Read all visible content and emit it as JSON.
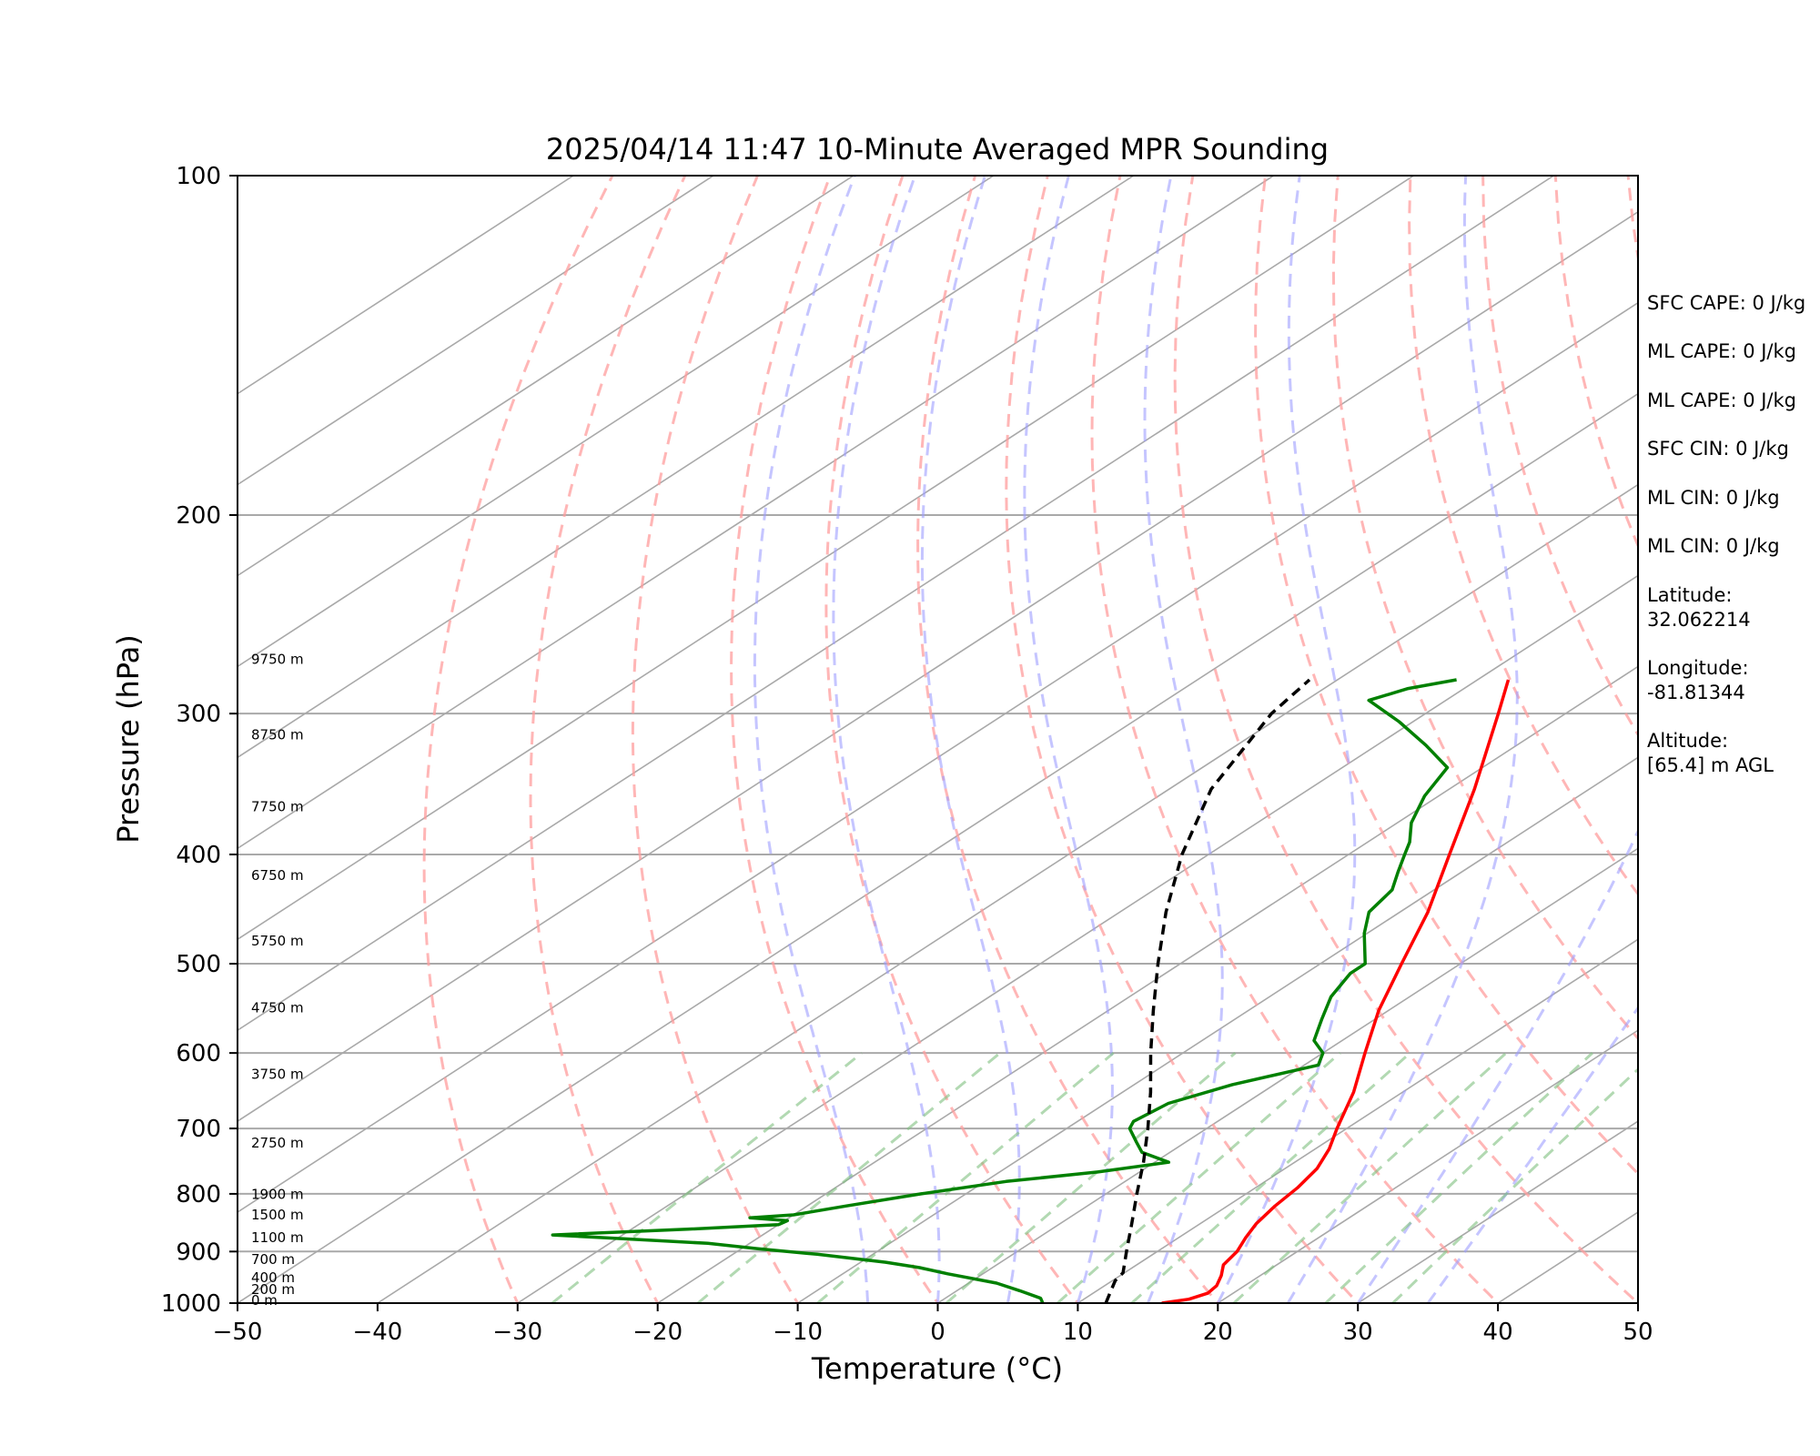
{
  "chart_data": {
    "type": "line",
    "title": "2025/04/14 11:47 10-Minute Averaged MPR Sounding",
    "xlabel": "Temperature (°C)",
    "ylabel": "Pressure (hPa)",
    "xlim": [
      -50,
      50
    ],
    "ylim": [
      1000,
      100
    ],
    "y_scale": "log",
    "grid": true,
    "x_ticks": [
      -50,
      -40,
      -30,
      -20,
      -10,
      0,
      10,
      20,
      30,
      40,
      50
    ],
    "y_ticks": [
      100,
      200,
      300,
      400,
      500,
      600,
      700,
      800,
      900,
      1000
    ],
    "series": [
      {
        "name": "",
        "color": "#ff0000",
        "points": [
          [
            1000,
            16.0
          ],
          [
            992,
            17.5
          ],
          [
            980,
            18.2
          ],
          [
            965,
            18.0
          ],
          [
            945,
            17.2
          ],
          [
            925,
            16.2
          ],
          [
            900,
            15.7
          ],
          [
            875,
            14.8
          ],
          [
            850,
            14.0
          ],
          [
            820,
            13.4
          ],
          [
            790,
            13.0
          ],
          [
            760,
            12.3
          ],
          [
            730,
            11.0
          ],
          [
            700,
            9.3
          ],
          [
            650,
            6.5
          ],
          [
            600,
            3.0
          ],
          [
            550,
            -0.7
          ],
          [
            500,
            -4.2
          ],
          [
            450,
            -8.0
          ],
          [
            400,
            -12.8
          ],
          [
            350,
            -18.2
          ],
          [
            300,
            -24.8
          ],
          [
            280,
            -27.8
          ]
        ]
      },
      {
        "name": "",
        "color": "#008000",
        "points": [
          [
            1000,
            7.5
          ],
          [
            990,
            6.8
          ],
          [
            975,
            4.5
          ],
          [
            960,
            2.0
          ],
          [
            942,
            -2.5
          ],
          [
            930,
            -5.2
          ],
          [
            920,
            -8.2
          ],
          [
            905,
            -14.0
          ],
          [
            895,
            -18.8
          ],
          [
            885,
            -23.0
          ],
          [
            875,
            -31.0
          ],
          [
            870,
            -35.0
          ],
          [
            860,
            -26.0
          ],
          [
            852,
            -20.0
          ],
          [
            845,
            -19.8
          ],
          [
            840,
            -22.8
          ],
          [
            835,
            -20.0
          ],
          [
            820,
            -17.2
          ],
          [
            800,
            -13.2
          ],
          [
            780,
            -8.5
          ],
          [
            765,
            -3.0
          ],
          [
            750,
            1.0
          ],
          [
            735,
            -2.0
          ],
          [
            720,
            -3.5
          ],
          [
            700,
            -5.5
          ],
          [
            690,
            -6.0
          ],
          [
            665,
            -5.5
          ],
          [
            640,
            -3.0
          ],
          [
            615,
            1.0
          ],
          [
            600,
            0.0
          ],
          [
            585,
            -2.0
          ],
          [
            560,
            -3.8
          ],
          [
            535,
            -5.6
          ],
          [
            510,
            -6.8
          ],
          [
            500,
            -6.8
          ],
          [
            470,
            -10.2
          ],
          [
            450,
            -12.2
          ],
          [
            430,
            -13.0
          ],
          [
            415,
            -14.5
          ],
          [
            400,
            -16.0
          ],
          [
            390,
            -17.0
          ],
          [
            375,
            -19.0
          ],
          [
            355,
            -21.0
          ],
          [
            335,
            -22.5
          ],
          [
            320,
            -26.5
          ],
          [
            305,
            -31.0
          ],
          [
            292,
            -35.5
          ],
          [
            285,
            -34.0
          ],
          [
            280,
            -31.5
          ]
        ]
      },
      {
        "name": "",
        "color": "#000000",
        "dashed": true,
        "points": [
          [
            1000,
            12.0
          ],
          [
            975,
            11.0
          ],
          [
            955,
            10.2
          ],
          [
            940,
            9.9
          ],
          [
            900,
            7.8
          ],
          [
            850,
            5.1
          ],
          [
            800,
            2.2
          ],
          [
            750,
            -0.8
          ],
          [
            700,
            -4.2
          ],
          [
            650,
            -8.0
          ],
          [
            600,
            -12.3
          ],
          [
            550,
            -16.8
          ],
          [
            500,
            -21.6
          ],
          [
            450,
            -26.7
          ],
          [
            400,
            -31.9
          ],
          [
            350,
            -37.0
          ],
          [
            300,
            -41.0
          ],
          [
            280,
            -42.0
          ]
        ]
      }
    ],
    "background_lines": {
      "isotherms_c": [
        -150,
        -140,
        -130,
        -120,
        -110,
        -100,
        -90,
        -80,
        -70,
        -60,
        -50,
        -40,
        -30,
        -20,
        -10,
        0,
        10,
        20,
        30,
        40,
        50
      ],
      "dry_adiabats_c": [
        -30,
        -20,
        -10,
        0,
        10,
        20,
        30,
        40,
        50,
        60,
        70,
        80,
        90,
        100,
        110,
        120,
        130
      ],
      "moist_adiabats_c": [
        -5,
        0,
        5,
        10,
        15,
        20,
        25,
        30,
        35
      ],
      "mixing_ratios_gkg": [
        0.4,
        1,
        2,
        4,
        7,
        10,
        16,
        24,
        32
      ]
    },
    "annotations": [
      {
        "pressure": 1000,
        "label": "0 m"
      },
      {
        "pressure": 978,
        "label": "200 m"
      },
      {
        "pressure": 955,
        "label": "400 m"
      },
      {
        "pressure": 920,
        "label": "700 m"
      },
      {
        "pressure": 880,
        "label": "1100 m"
      },
      {
        "pressure": 840,
        "label": "1500 m"
      },
      {
        "pressure": 805,
        "label": "1900 m"
      },
      {
        "pressure": 725,
        "label": "2750 m"
      },
      {
        "pressure": 630,
        "label": "3750 m"
      },
      {
        "pressure": 550,
        "label": "4750 m"
      },
      {
        "pressure": 480,
        "label": "5750 m"
      },
      {
        "pressure": 420,
        "label": "6750 m"
      },
      {
        "pressure": 365,
        "label": "7750 m"
      },
      {
        "pressure": 315,
        "label": "8750 m"
      },
      {
        "pressure": 270,
        "label": "9750 m"
      }
    ]
  },
  "side_panel": [
    "SFC CAPE: 0 J/kg",
    "ML CAPE: 0 J/kg",
    "ML CAPE: 0 J/kg",
    "SFC CIN: 0 J/kg",
    "ML CIN: 0 J/kg",
    "ML CIN: 0 J/kg",
    "Latitude:",
    "32.062214",
    "Longitude:",
    "-81.81344",
    "Altitude:",
    "[65.4] m AGL"
  ]
}
